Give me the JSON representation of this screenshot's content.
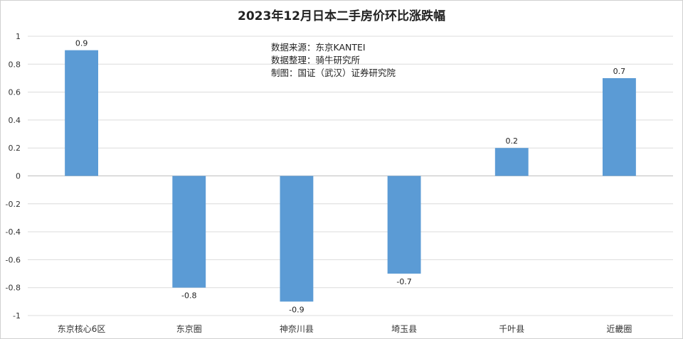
{
  "chart_data": {
    "type": "bar",
    "title": "2023年12月日本二手房价环比涨跌幅",
    "categories": [
      "东京核心6区",
      "东京圈",
      "神奈川县",
      "埼玉县",
      "千叶县",
      "近畿圈"
    ],
    "values": [
      0.9,
      -0.8,
      -0.9,
      -0.7,
      0.2,
      0.7
    ],
    "data_labels": [
      "0.9",
      "-0.8",
      "-0.9",
      "-0.7",
      "0.2",
      "0.7"
    ],
    "ylim": [
      -1,
      1
    ],
    "yticks": [
      1,
      0.8,
      0.6,
      0.4,
      0.2,
      0,
      -0.2,
      -0.4,
      -0.6,
      -0.8,
      -1
    ],
    "ytick_labels": [
      "1",
      "0.8",
      "0.6",
      "0.4",
      "0.2",
      "0",
      "-0.2",
      "-0.4",
      "-0.6",
      "-0.8",
      "-1"
    ],
    "xlabel": "",
    "ylabel": "",
    "grid": true,
    "legend": "none",
    "bar_color": "#5b9bd5",
    "annotations": [
      "数据来源：东京KANTEI",
      "数据整理：骑牛研究所",
      "制图：国证（武汉）证券研究院"
    ]
  }
}
